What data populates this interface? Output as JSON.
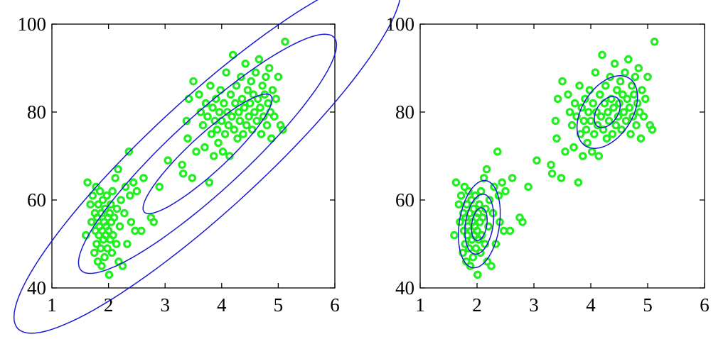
{
  "colors": {
    "points": "#22ee22",
    "contours": "#1a1ad0",
    "axes": "#000000",
    "background": "#ffffff"
  },
  "chart_data": [
    {
      "type": "scatter",
      "title": "",
      "xlabel": "",
      "ylabel": "",
      "xlim": [
        1,
        6
      ],
      "ylim": [
        40,
        100
      ],
      "xticks": [
        "1",
        "2",
        "3",
        "4",
        "5",
        "6"
      ],
      "yticks": [
        "40",
        "60",
        "80",
        "100"
      ],
      "grid": false,
      "marker": "open-circle",
      "points": [
        [
          1.6,
          52
        ],
        [
          1.63,
          64
        ],
        [
          1.68,
          59
        ],
        [
          1.7,
          55
        ],
        [
          1.72,
          61
        ],
        [
          1.75,
          48
        ],
        [
          1.76,
          57
        ],
        [
          1.77,
          53
        ],
        [
          1.78,
          63
        ],
        [
          1.79,
          50
        ],
        [
          1.8,
          56
        ],
        [
          1.81,
          46
        ],
        [
          1.82,
          59
        ],
        [
          1.83,
          52
        ],
        [
          1.84,
          54
        ],
        [
          1.85,
          62
        ],
        [
          1.86,
          49
        ],
        [
          1.87,
          57
        ],
        [
          1.88,
          45
        ],
        [
          1.89,
          53
        ],
        [
          1.9,
          60
        ],
        [
          1.91,
          51
        ],
        [
          1.92,
          55
        ],
        [
          1.93,
          47
        ],
        [
          1.94,
          58
        ],
        [
          1.95,
          52
        ],
        [
          1.96,
          54
        ],
        [
          1.97,
          61
        ],
        [
          1.98,
          49
        ],
        [
          1.99,
          56
        ],
        [
          2.0,
          53
        ],
        [
          2.01,
          43
        ],
        [
          2.02,
          57
        ],
        [
          2.03,
          51
        ],
        [
          2.04,
          59
        ],
        [
          2.05,
          55
        ],
        [
          2.06,
          48
        ],
        [
          2.07,
          62
        ],
        [
          2.08,
          52
        ],
        [
          2.1,
          56
        ],
        [
          2.12,
          65
        ],
        [
          2.14,
          50
        ],
        [
          2.15,
          58
        ],
        [
          2.17,
          67
        ],
        [
          2.18,
          46
        ],
        [
          2.2,
          54
        ],
        [
          2.22,
          60
        ],
        [
          2.25,
          45
        ],
        [
          2.28,
          57
        ],
        [
          2.3,
          63
        ],
        [
          2.33,
          50
        ],
        [
          2.36,
          71
        ],
        [
          2.38,
          61
        ],
        [
          2.4,
          55
        ],
        [
          2.44,
          64
        ],
        [
          2.47,
          53
        ],
        [
          2.5,
          62
        ],
        [
          2.58,
          53
        ],
        [
          2.62,
          65
        ],
        [
          2.75,
          56
        ],
        [
          2.8,
          55
        ],
        [
          2.9,
          63
        ],
        [
          3.05,
          69
        ],
        [
          3.3,
          68
        ],
        [
          3.32,
          66
        ],
        [
          3.38,
          78
        ],
        [
          3.4,
          74
        ],
        [
          3.42,
          83
        ],
        [
          3.48,
          65
        ],
        [
          3.5,
          87
        ],
        [
          3.55,
          71
        ],
        [
          3.6,
          84
        ],
        [
          3.63,
          80
        ],
        [
          3.67,
          77
        ],
        [
          3.7,
          72
        ],
        [
          3.72,
          82
        ],
        [
          3.75,
          79
        ],
        [
          3.78,
          64
        ],
        [
          3.8,
          86
        ],
        [
          3.82,
          75
        ],
        [
          3.84,
          81
        ],
        [
          3.86,
          70
        ],
        [
          3.88,
          78
        ],
        [
          3.9,
          83
        ],
        [
          3.92,
          76
        ],
        [
          3.94,
          73
        ],
        [
          3.96,
          80
        ],
        [
          3.98,
          85
        ],
        [
          4.0,
          78
        ],
        [
          4.02,
          71
        ],
        [
          4.04,
          82
        ],
        [
          4.06,
          75
        ],
        [
          4.08,
          89
        ],
        [
          4.1,
          80
        ],
        [
          4.12,
          77
        ],
        [
          4.14,
          70
        ],
        [
          4.16,
          84
        ],
        [
          4.18,
          79
        ],
        [
          4.2,
          93
        ],
        [
          4.22,
          76
        ],
        [
          4.24,
          82
        ],
        [
          4.26,
          86
        ],
        [
          4.28,
          74
        ],
        [
          4.3,
          80
        ],
        [
          4.32,
          78
        ],
        [
          4.34,
          88
        ],
        [
          4.36,
          83
        ],
        [
          4.38,
          75
        ],
        [
          4.4,
          81
        ],
        [
          4.42,
          91
        ],
        [
          4.44,
          77
        ],
        [
          4.46,
          85
        ],
        [
          4.48,
          79
        ],
        [
          4.5,
          82
        ],
        [
          4.52,
          87
        ],
        [
          4.54,
          76
        ],
        [
          4.56,
          84
        ],
        [
          4.58,
          80
        ],
        [
          4.6,
          89
        ],
        [
          4.62,
          78
        ],
        [
          4.64,
          83
        ],
        [
          4.66,
          92
        ],
        [
          4.68,
          81
        ],
        [
          4.7,
          75
        ],
        [
          4.72,
          86
        ],
        [
          4.74,
          79
        ],
        [
          4.76,
          84
        ],
        [
          4.78,
          88
        ],
        [
          4.8,
          77
        ],
        [
          4.82,
          82
        ],
        [
          4.84,
          90
        ],
        [
          4.86,
          80
        ],
        [
          4.88,
          74
        ],
        [
          4.9,
          85
        ],
        [
          4.93,
          79
        ],
        [
          4.96,
          83
        ],
        [
          5.0,
          88
        ],
        [
          5.04,
          77
        ],
        [
          5.08,
          76
        ],
        [
          5.12,
          96
        ]
      ],
      "contours": [
        {
          "center": [
            3.75,
            70.5
          ],
          "sd": [
            1.14,
            13.6
          ],
          "rho": 0.91,
          "level": 1.0
        },
        {
          "center": [
            3.75,
            70.5
          ],
          "sd": [
            1.14,
            13.6
          ],
          "rho": 0.91,
          "level": 2.0
        },
        {
          "center": [
            3.75,
            70.5
          ],
          "sd": [
            1.14,
            13.6
          ],
          "rho": 0.91,
          "level": 3.0
        }
      ]
    },
    {
      "type": "scatter",
      "title": "",
      "xlabel": "",
      "ylabel": "",
      "xlim": [
        1,
        6
      ],
      "ylim": [
        40,
        100
      ],
      "xticks": [
        "1",
        "2",
        "3",
        "4",
        "5",
        "6"
      ],
      "yticks": [
        "40",
        "60",
        "80",
        "100"
      ],
      "grid": false,
      "marker": "open-circle",
      "points": [
        [
          1.6,
          52
        ],
        [
          1.63,
          64
        ],
        [
          1.68,
          59
        ],
        [
          1.7,
          55
        ],
        [
          1.72,
          61
        ],
        [
          1.75,
          48
        ],
        [
          1.76,
          57
        ],
        [
          1.77,
          53
        ],
        [
          1.78,
          63
        ],
        [
          1.79,
          50
        ],
        [
          1.8,
          56
        ],
        [
          1.81,
          46
        ],
        [
          1.82,
          59
        ],
        [
          1.83,
          52
        ],
        [
          1.84,
          54
        ],
        [
          1.85,
          62
        ],
        [
          1.86,
          49
        ],
        [
          1.87,
          57
        ],
        [
          1.88,
          45
        ],
        [
          1.89,
          53
        ],
        [
          1.9,
          60
        ],
        [
          1.91,
          51
        ],
        [
          1.92,
          55
        ],
        [
          1.93,
          47
        ],
        [
          1.94,
          58
        ],
        [
          1.95,
          52
        ],
        [
          1.96,
          54
        ],
        [
          1.97,
          61
        ],
        [
          1.98,
          49
        ],
        [
          1.99,
          56
        ],
        [
          2.0,
          53
        ],
        [
          2.01,
          43
        ],
        [
          2.02,
          57
        ],
        [
          2.03,
          51
        ],
        [
          2.04,
          59
        ],
        [
          2.05,
          55
        ],
        [
          2.06,
          48
        ],
        [
          2.07,
          62
        ],
        [
          2.08,
          52
        ],
        [
          2.1,
          56
        ],
        [
          2.12,
          65
        ],
        [
          2.14,
          50
        ],
        [
          2.15,
          58
        ],
        [
          2.17,
          67
        ],
        [
          2.18,
          46
        ],
        [
          2.2,
          54
        ],
        [
          2.22,
          60
        ],
        [
          2.25,
          45
        ],
        [
          2.28,
          57
        ],
        [
          2.3,
          63
        ],
        [
          2.33,
          50
        ],
        [
          2.36,
          71
        ],
        [
          2.38,
          61
        ],
        [
          2.4,
          55
        ],
        [
          2.44,
          64
        ],
        [
          2.47,
          53
        ],
        [
          2.5,
          62
        ],
        [
          2.58,
          53
        ],
        [
          2.62,
          65
        ],
        [
          2.75,
          56
        ],
        [
          2.8,
          55
        ],
        [
          2.9,
          63
        ],
        [
          3.05,
          69
        ],
        [
          3.3,
          68
        ],
        [
          3.32,
          66
        ],
        [
          3.38,
          78
        ],
        [
          3.4,
          74
        ],
        [
          3.42,
          83
        ],
        [
          3.48,
          65
        ],
        [
          3.5,
          87
        ],
        [
          3.55,
          71
        ],
        [
          3.6,
          84
        ],
        [
          3.63,
          80
        ],
        [
          3.67,
          77
        ],
        [
          3.7,
          72
        ],
        [
          3.72,
          82
        ],
        [
          3.75,
          79
        ],
        [
          3.78,
          64
        ],
        [
          3.8,
          86
        ],
        [
          3.82,
          75
        ],
        [
          3.84,
          81
        ],
        [
          3.86,
          70
        ],
        [
          3.88,
          78
        ],
        [
          3.9,
          83
        ],
        [
          3.92,
          76
        ],
        [
          3.94,
          73
        ],
        [
          3.96,
          80
        ],
        [
          3.98,
          85
        ],
        [
          4.0,
          78
        ],
        [
          4.02,
          71
        ],
        [
          4.04,
          82
        ],
        [
          4.06,
          75
        ],
        [
          4.08,
          89
        ],
        [
          4.1,
          80
        ],
        [
          4.12,
          77
        ],
        [
          4.14,
          70
        ],
        [
          4.16,
          84
        ],
        [
          4.18,
          79
        ],
        [
          4.2,
          93
        ],
        [
          4.22,
          76
        ],
        [
          4.24,
          82
        ],
        [
          4.26,
          86
        ],
        [
          4.28,
          74
        ],
        [
          4.3,
          80
        ],
        [
          4.32,
          78
        ],
        [
          4.34,
          88
        ],
        [
          4.36,
          83
        ],
        [
          4.38,
          75
        ],
        [
          4.4,
          81
        ],
        [
          4.42,
          91
        ],
        [
          4.44,
          77
        ],
        [
          4.46,
          85
        ],
        [
          4.48,
          79
        ],
        [
          4.5,
          82
        ],
        [
          4.52,
          87
        ],
        [
          4.54,
          76
        ],
        [
          4.56,
          84
        ],
        [
          4.58,
          80
        ],
        [
          4.6,
          89
        ],
        [
          4.62,
          78
        ],
        [
          4.64,
          83
        ],
        [
          4.66,
          92
        ],
        [
          4.68,
          81
        ],
        [
          4.7,
          75
        ],
        [
          4.72,
          86
        ],
        [
          4.74,
          79
        ],
        [
          4.76,
          84
        ],
        [
          4.78,
          88
        ],
        [
          4.8,
          77
        ],
        [
          4.82,
          82
        ],
        [
          4.84,
          90
        ],
        [
          4.86,
          80
        ],
        [
          4.88,
          74
        ],
        [
          4.9,
          85
        ],
        [
          4.93,
          79
        ],
        [
          4.96,
          83
        ],
        [
          5.0,
          88
        ],
        [
          5.04,
          77
        ],
        [
          5.08,
          76
        ],
        [
          5.12,
          96
        ]
      ],
      "contours": [
        {
          "center": [
            2.04,
            54.5
          ],
          "sd": [
            0.23,
            6.2
          ],
          "rho": 0.25,
          "level": 0.6
        },
        {
          "center": [
            2.04,
            54.5
          ],
          "sd": [
            0.23,
            6.2
          ],
          "rho": 0.25,
          "level": 1.1
        },
        {
          "center": [
            2.04,
            54.5
          ],
          "sd": [
            0.23,
            6.2
          ],
          "rho": 0.25,
          "level": 1.6
        },
        {
          "center": [
            4.29,
            80.0
          ],
          "sd": [
            0.38,
            5.9
          ],
          "rho": 0.42,
          "level": 0.6
        },
        {
          "center": [
            4.29,
            80.0
          ],
          "sd": [
            0.38,
            5.9
          ],
          "rho": 0.42,
          "level": 1.4
        }
      ]
    }
  ]
}
